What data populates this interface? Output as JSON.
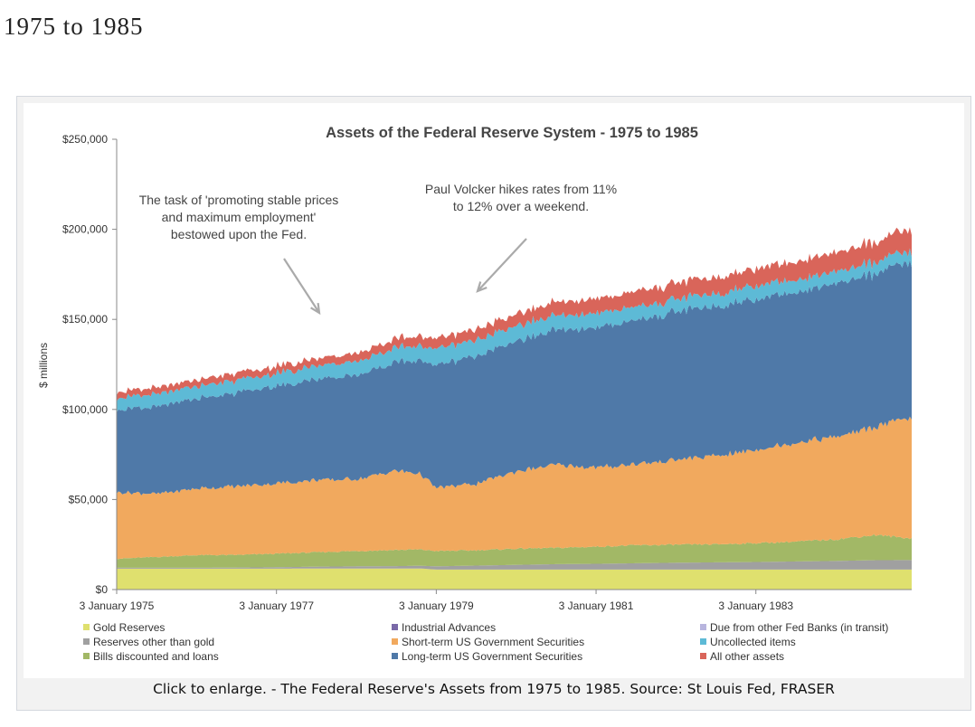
{
  "page": {
    "heading": "1975 to 1985",
    "caption": "Click to enlarge. - The Federal Reserve's Assets from 1975 to 1985. Source: St Louis Fed, FRASER"
  },
  "chart_data": {
    "type": "area",
    "stacked": true,
    "title": "Assets of the Federal Reserve System - 1975 to 1985",
    "xlabel": "",
    "ylabel": "$ millions",
    "ylim": [
      0,
      250000
    ],
    "y_ticks": [
      "$0",
      "$50,000",
      "$100,000",
      "$150,000",
      "$200,000",
      "$250,000"
    ],
    "y_tick_values": [
      0,
      50000,
      100000,
      150000,
      200000,
      250000
    ],
    "x_ticks": [
      "3 January 1975",
      "3 January 1977",
      "3 January 1979",
      "3 January 1981",
      "3 January 1983"
    ],
    "x_tick_years": [
      1975,
      1977,
      1979,
      1981,
      1983
    ],
    "x_range": [
      1975,
      1984.95
    ],
    "grid": false,
    "legend_position": "bottom",
    "annotations": [
      {
        "lines": [
          "The task of 'promoting stable prices",
          "and maximum employment'",
          "bestowed upon the Fed."
        ]
      },
      {
        "lines": [
          "Paul Volcker hikes rates from 11%",
          "to 12% over a weekend."
        ]
      }
    ],
    "x": [
      1975.0,
      1975.5,
      1976.0,
      1976.5,
      1977.0,
      1977.5,
      1978.0,
      1978.5,
      1978.8,
      1979.0,
      1979.5,
      1980.0,
      1980.5,
      1981.0,
      1981.5,
      1982.0,
      1982.5,
      1983.0,
      1983.5,
      1984.0,
      1984.5,
      1984.95
    ],
    "series": [
      {
        "name": "Gold Reserves",
        "color": "#dfe06e",
        "values": [
          11600,
          11600,
          11600,
          11600,
          11600,
          11700,
          11700,
          11700,
          11700,
          11100,
          11100,
          11100,
          11100,
          11100,
          11100,
          11100,
          11100,
          11100,
          11100,
          11100,
          11100,
          11100
        ]
      },
      {
        "name": "Reserves other than gold",
        "color": "#a0a0a0",
        "values": [
          500,
          500,
          500,
          600,
          800,
          1000,
          1200,
          1300,
          1500,
          1800,
          2200,
          2600,
          3000,
          3200,
          3500,
          3800,
          4000,
          4200,
          4500,
          4800,
          5200,
          5300
        ]
      },
      {
        "name": "Bills discounted and loans",
        "color": "#a2b866",
        "values": [
          5000,
          6000,
          7000,
          7000,
          7500,
          8000,
          8500,
          9000,
          9000,
          8500,
          8500,
          9000,
          9000,
          9500,
          10000,
          10000,
          10000,
          10500,
          11000,
          12000,
          14000,
          12000
        ]
      },
      {
        "name": "Industrial Advances",
        "color": "#7a69a8",
        "values": [
          0,
          0,
          0,
          0,
          0,
          0,
          0,
          0,
          0,
          0,
          0,
          0,
          0,
          0,
          0,
          0,
          0,
          0,
          0,
          0,
          0,
          0
        ]
      },
      {
        "name": "Short-term US Government Securities",
        "color": "#f1a95e",
        "values": [
          37000,
          35000,
          37000,
          38000,
          39000,
          40000,
          40000,
          44000,
          42000,
          35000,
          37000,
          43000,
          46000,
          44000,
          45000,
          47000,
          49000,
          52000,
          55000,
          57000,
          60000,
          67000
        ]
      },
      {
        "name": "Long-term US Government Securities",
        "color": "#4f79a8",
        "values": [
          46000,
          48000,
          50000,
          52000,
          54000,
          56000,
          58000,
          60000,
          63000,
          68000,
          71000,
          72000,
          75000,
          77000,
          80000,
          82000,
          83000,
          84000,
          84000,
          85000,
          85000,
          86000
        ]
      },
      {
        "name": "Due from other Fed Banks (in transit)",
        "color": "#b8b5de",
        "values": [
          0,
          0,
          0,
          0,
          0,
          0,
          0,
          0,
          0,
          0,
          0,
          0,
          0,
          0,
          0,
          0,
          0,
          0,
          0,
          0,
          0,
          0
        ]
      },
      {
        "name": "Uncollected items",
        "color": "#5dbad6",
        "values": [
          6500,
          7000,
          7000,
          7000,
          7000,
          7500,
          7500,
          8000,
          8000,
          9000,
          9000,
          8500,
          8000,
          8000,
          7500,
          7000,
          7000,
          7500,
          7000,
          6500,
          6500,
          6000
        ]
      },
      {
        "name": "All other assets",
        "color": "#d9655a",
        "values": [
          3500,
          3500,
          3500,
          4000,
          4000,
          4000,
          4500,
          5000,
          5500,
          5500,
          6000,
          6500,
          7500,
          8000,
          8500,
          9000,
          9000,
          9500,
          10000,
          10500,
          11000,
          12000
        ]
      }
    ]
  }
}
